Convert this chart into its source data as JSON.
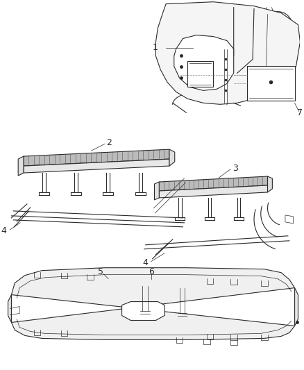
{
  "background_color": "#ffffff",
  "line_color": "#2a2a2a",
  "light_gray": "#bbbbbb",
  "mid_gray": "#888888",
  "fig_width": 4.38,
  "fig_height": 5.33,
  "dpi": 100
}
